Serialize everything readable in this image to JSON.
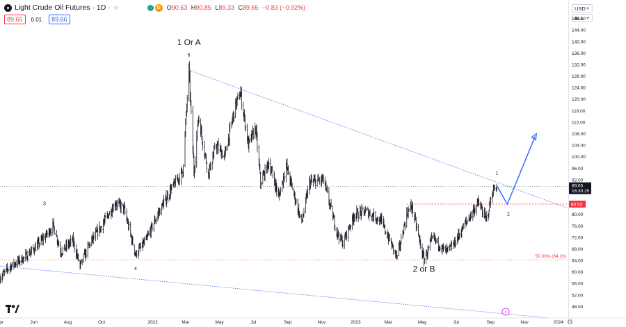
{
  "header": {
    "symbol_title": "Light Crude Oil Futures · 1D · ",
    "open_label": "O",
    "open": "90.63",
    "high_label": "H",
    "high": "90.85",
    "low_label": "L",
    "low": "89.33",
    "close_label": "C",
    "close": "89.65",
    "change": "−0.83 (−0.92%)",
    "sell_price": "89.65",
    "spread": "0.01",
    "buy_price": "89.66",
    "badge_d": "D"
  },
  "controls": {
    "currency": "USD",
    "unit": "BLL"
  },
  "colors": {
    "up": "#131722",
    "down": "#131722",
    "resistance": "#4f6ce0",
    "support_level": "#f23645",
    "forecast": "#2962ff",
    "accent": "#2962ff"
  },
  "chart_data": {
    "type": "ohlc",
    "title": "Light Crude Oil Futures",
    "interval": "1D",
    "y_axis_labels": [
      "148.00",
      "144.00",
      "140.00",
      "136.00",
      "132.00",
      "128.00",
      "124.00",
      "120.00",
      "116.00",
      "112.00",
      "108.00",
      "104.00",
      "100.00",
      "96.00",
      "92.00",
      "88.00",
      "84.00",
      "80.00",
      "76.00",
      "72.00",
      "68.00",
      "64.00",
      "60.00",
      "56.00",
      "52.00",
      "48.00"
    ],
    "ylim": [
      44,
      152
    ],
    "x_axis_labels": [
      "Apr",
      "Jun",
      "Aug",
      "Oct",
      "2022",
      "Mar",
      "May",
      "Jul",
      "Sep",
      "Nov",
      "2023",
      "Mar",
      "May",
      "Jul",
      "Sep",
      "Nov",
      "2024"
    ],
    "x_ticks": [
      "2021-04-01",
      "2021-06-01",
      "2021-08-01",
      "2021-10-01",
      "2022-01-01",
      "2022-03-01",
      "2022-05-01",
      "2022-07-01",
      "2022-09-01",
      "2022-11-01",
      "2023-01-01",
      "2023-03-01",
      "2023-05-01",
      "2023-07-01",
      "2023-09-01",
      "2023-11-01",
      "2024-01-01"
    ],
    "xlim": [
      "2021-04-01",
      "2024-01-20"
    ],
    "price_path": [
      [
        "2021-04-01",
        58
      ],
      [
        "2021-04-20",
        62
      ],
      [
        "2021-05-15",
        65
      ],
      [
        "2021-06-01",
        68
      ],
      [
        "2021-06-20",
        72
      ],
      [
        "2021-07-06",
        76
      ],
      [
        "2021-07-20",
        67
      ],
      [
        "2021-08-10",
        71
      ],
      [
        "2021-08-23",
        62
      ],
      [
        "2021-09-10",
        70
      ],
      [
        "2021-10-01",
        76
      ],
      [
        "2021-10-26",
        84
      ],
      [
        "2021-11-10",
        82
      ],
      [
        "2021-12-01",
        66
      ],
      [
        "2021-12-20",
        71
      ],
      [
        "2022-01-10",
        80
      ],
      [
        "2022-02-01",
        88
      ],
      [
        "2022-02-24",
        95
      ],
      [
        "2022-03-07",
        130
      ],
      [
        "2022-03-16",
        95
      ],
      [
        "2022-03-24",
        114
      ],
      [
        "2022-04-11",
        94
      ],
      [
        "2022-04-25",
        104
      ],
      [
        "2022-05-10",
        100
      ],
      [
        "2022-05-30",
        118
      ],
      [
        "2022-06-08",
        122
      ],
      [
        "2022-06-22",
        104
      ],
      [
        "2022-07-05",
        110
      ],
      [
        "2022-07-14",
        91
      ],
      [
        "2022-07-29",
        98
      ],
      [
        "2022-08-16",
        86
      ],
      [
        "2022-08-29",
        97
      ],
      [
        "2022-09-26",
        77
      ],
      [
        "2022-10-10",
        91
      ],
      [
        "2022-11-04",
        92
      ],
      [
        "2022-11-28",
        74
      ],
      [
        "2022-12-09",
        70
      ],
      [
        "2022-12-30",
        80
      ],
      [
        "2023-01-20",
        81
      ],
      [
        "2023-02-15",
        78
      ],
      [
        "2023-03-17",
        65
      ],
      [
        "2023-04-03",
        80
      ],
      [
        "2023-04-12",
        83
      ],
      [
        "2023-05-04",
        64
      ],
      [
        "2023-05-20",
        72
      ],
      [
        "2023-06-12",
        67
      ],
      [
        "2023-06-25",
        69
      ],
      [
        "2023-07-15",
        76
      ],
      [
        "2023-08-10",
        84
      ],
      [
        "2023-08-24",
        78
      ],
      [
        "2023-09-05",
        88
      ],
      [
        "2023-09-12",
        90
      ]
    ],
    "last_price": "89.65",
    "countdown": "16:30:25",
    "level_price": "83.53",
    "fib_label": "50.00% (64.20)",
    "fib_level": 64.2,
    "resistance_line": [
      [
        "2022-03-07",
        130
      ],
      [
        "2024-01-20",
        82
      ]
    ],
    "support_line": [
      [
        "2021-04-01",
        62
      ],
      [
        "2023-12-15",
        44
      ]
    ],
    "forecast_path": [
      [
        "2023-09-12",
        90
      ],
      [
        "2023-10-01",
        83.5
      ],
      [
        "2023-11-20",
        107
      ]
    ],
    "annotations": [
      {
        "text": "1 Or A",
        "x": "2022-03-07",
        "y": 138.8,
        "big": true
      },
      {
        "text": "5",
        "x": "2022-03-07",
        "y": 134.8,
        "big": false
      },
      {
        "text": "3",
        "x": "2021-06-20",
        "y": 83.2,
        "big": false
      },
      {
        "text": "4",
        "x": "2021-12-01",
        "y": 60.6,
        "big": false
      },
      {
        "text": "2 or B",
        "x": "2023-05-04",
        "y": 60,
        "big": true
      },
      {
        "text": "1",
        "x": "2023-09-12",
        "y": 93.8,
        "big": false
      },
      {
        "text": "2",
        "x": "2023-10-03",
        "y": 79.6,
        "big": false
      }
    ]
  }
}
